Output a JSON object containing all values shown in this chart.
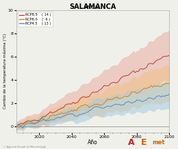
{
  "title": "SALAMANCA",
  "subtitle": "ANUAL",
  "xlabel": "Año",
  "ylabel": "Cambio de la temperatura máxima (°C)",
  "xlim": [
    2006,
    2100
  ],
  "ylim": [
    -0.5,
    10
  ],
  "yticks": [
    0,
    2,
    4,
    6,
    8,
    10
  ],
  "xticks": [
    2020,
    2040,
    2060,
    2080,
    2100
  ],
  "legend_entries": [
    {
      "label": "RCP8.5",
      "count": "( 14 )",
      "line_color": "#c0392b",
      "band_color": "#e8a89c"
    },
    {
      "label": "RCP6.0",
      "count": "(  6 )",
      "line_color": "#d4820a",
      "band_color": "#f0c080"
    },
    {
      "label": "RCP4.5",
      "count": "( 13 )",
      "line_color": "#4a90c4",
      "band_color": "#9ecae1"
    }
  ],
  "background_color": "#f0f0ea",
  "seed": 42
}
